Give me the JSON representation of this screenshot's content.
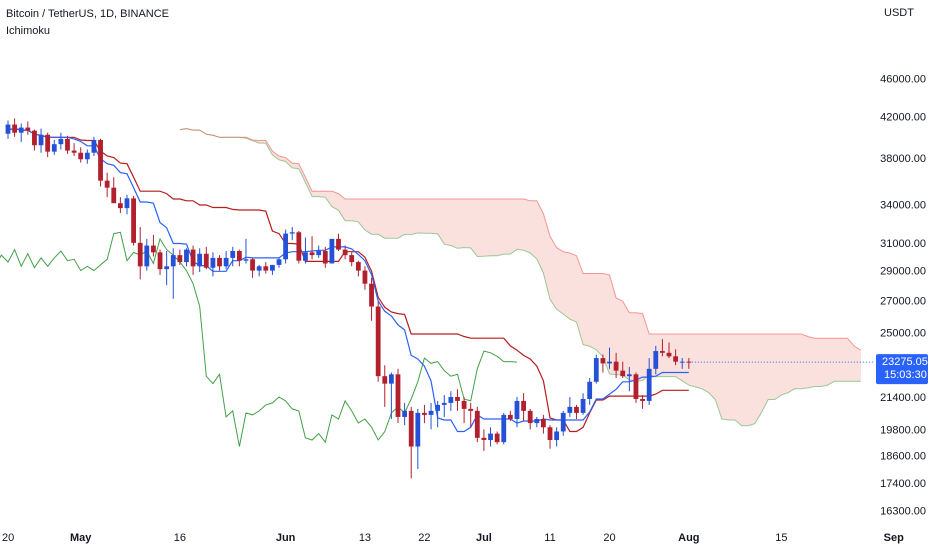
{
  "header": {
    "title": "Bitcoin / TetherUS, 1D, BINANCE",
    "indicator": "Ichimoku"
  },
  "currency": "USDT",
  "price_tag": {
    "price": "23275.05",
    "countdown": "15:03:30",
    "value": 23275.05
  },
  "colors": {
    "up": "#2451d6",
    "down": "#b21f2d",
    "base_line": "#b71c1c",
    "conversion_line": "#2962ff",
    "lagging_span": "#43a047",
    "cloud_bull": "#e7f3e8",
    "cloud_bear": "#fbe1de",
    "price_tag": "#2962ff"
  },
  "chart_data": {
    "type": "candlestick",
    "title": "Bitcoin / TetherUS, 1D, BINANCE",
    "indicator": "Ichimoku",
    "y_scale": "log",
    "ylim": [
      16000,
      50000
    ],
    "y_ticks": [
      {
        "v": 46000,
        "label": "46000.00"
      },
      {
        "v": 42000,
        "label": "42000.00"
      },
      {
        "v": 38000,
        "label": "38000.00"
      },
      {
        "v": 34000,
        "label": "34000.00"
      },
      {
        "v": 31000,
        "label": "31000.00"
      },
      {
        "v": 29000,
        "label": "29000.00"
      },
      {
        "v": 27000,
        "label": "27000.00"
      },
      {
        "v": 25000,
        "label": "25000.00"
      },
      {
        "v": 21400,
        "label": "21400.00"
      },
      {
        "v": 19800,
        "label": "19800.00"
      },
      {
        "v": 18600,
        "label": "18600.00"
      },
      {
        "v": 17400,
        "label": "17400.00"
      },
      {
        "v": 16300,
        "label": "16300.00"
      }
    ],
    "x_ticks": [
      {
        "d": 0,
        "label": "20",
        "bold": false
      },
      {
        "d": 11,
        "label": "May",
        "bold": true
      },
      {
        "d": 26,
        "label": "16",
        "bold": false
      },
      {
        "d": 42,
        "label": "Jun",
        "bold": true
      },
      {
        "d": 54,
        "label": "13",
        "bold": false
      },
      {
        "d": 63,
        "label": "22",
        "bold": false
      },
      {
        "d": 72,
        "label": "Jul",
        "bold": true
      },
      {
        "d": 82,
        "label": "11",
        "bold": false
      },
      {
        "d": 91,
        "label": "20",
        "bold": false
      },
      {
        "d": 103,
        "label": "Aug",
        "bold": true
      },
      {
        "d": 117,
        "label": "15",
        "bold": false
      },
      {
        "d": 134,
        "label": "Sep",
        "bold": true
      }
    ],
    "candles": [
      [
        40300,
        41600,
        39800,
        41200
      ],
      [
        41200,
        41800,
        40000,
        40400
      ],
      [
        40400,
        41300,
        39500,
        40900
      ],
      [
        40900,
        41500,
        40200,
        40600
      ],
      [
        40600,
        40700,
        38700,
        39200
      ],
      [
        39200,
        40800,
        38500,
        40200
      ],
      [
        40200,
        40400,
        38100,
        38600
      ],
      [
        38600,
        39700,
        38300,
        39300
      ],
      [
        39300,
        40400,
        38800,
        39800
      ],
      [
        39800,
        40100,
        38400,
        38700
      ],
      [
        38700,
        39400,
        38200,
        38500
      ],
      [
        38500,
        39000,
        37600,
        37900
      ],
      [
        37900,
        38800,
        37500,
        38500
      ],
      [
        38500,
        40000,
        38200,
        39700
      ],
      [
        39700,
        39800,
        35500,
        36000
      ],
      [
        36000,
        36700,
        34600,
        35400
      ],
      [
        35400,
        36300,
        34300,
        34100
      ],
      [
        34100,
        34600,
        33300,
        33700
      ],
      [
        33700,
        34800,
        33200,
        34500
      ],
      [
        34500,
        34700,
        30800,
        31000
      ],
      [
        31000,
        32200,
        28400,
        29300
      ],
      [
        29300,
        31300,
        29000,
        30800
      ],
      [
        30800,
        31600,
        30000,
        30300
      ],
      [
        30300,
        30500,
        28700,
        29100
      ],
      [
        29100,
        30400,
        28000,
        29300
      ],
      [
        29300,
        30600,
        27100,
        30100
      ],
      [
        30100,
        30500,
        29400,
        29600
      ],
      [
        29600,
        30600,
        29300,
        30500
      ],
      [
        30500,
        30800,
        28700,
        29300
      ],
      [
        29300,
        30600,
        28900,
        30200
      ],
      [
        30200,
        30700,
        29100,
        29200
      ],
      [
        29200,
        30300,
        28600,
        29900
      ],
      [
        29900,
        30100,
        29000,
        29300
      ],
      [
        29300,
        30400,
        29100,
        29900
      ],
      [
        29900,
        30700,
        29300,
        30400
      ],
      [
        30400,
        30500,
        29300,
        29700
      ],
      [
        29700,
        31300,
        29500,
        29800
      ],
      [
        29800,
        29900,
        28500,
        29000
      ],
      [
        29000,
        29400,
        28600,
        29300
      ],
      [
        29300,
        29600,
        28800,
        29000
      ],
      [
        29000,
        29400,
        28700,
        29400
      ],
      [
        29400,
        29900,
        29200,
        29800
      ],
      [
        29800,
        32000,
        29500,
        31700
      ],
      [
        31700,
        32200,
        31200,
        31800
      ],
      [
        31800,
        31900,
        29500,
        29700
      ],
      [
        29700,
        31400,
        29500,
        30300
      ],
      [
        30300,
        31500,
        29800,
        30100
      ],
      [
        30100,
        30800,
        29900,
        30400
      ],
      [
        30400,
        30700,
        29200,
        29500
      ],
      [
        29500,
        31300,
        29500,
        31300
      ],
      [
        31300,
        31700,
        30400,
        30500
      ],
      [
        30500,
        30800,
        29800,
        30100
      ],
      [
        30100,
        30300,
        29300,
        29600
      ],
      [
        29600,
        29700,
        28600,
        29000
      ],
      [
        29000,
        29300,
        27700,
        28100
      ],
      [
        28100,
        28500,
        25700,
        26600
      ],
      [
        26600,
        26900,
        22200,
        22500
      ],
      [
        22500,
        23100,
        20900,
        22100
      ],
      [
        22100,
        22700,
        20300,
        22600
      ],
      [
        22600,
        22900,
        20100,
        20400
      ],
      [
        20400,
        21100,
        20000,
        20700
      ],
      [
        20700,
        20900,
        17600,
        19000
      ],
      [
        19000,
        20800,
        18000,
        20600
      ],
      [
        20600,
        21000,
        20100,
        20500
      ],
      [
        20500,
        21100,
        19800,
        20700
      ],
      [
        20700,
        21200,
        19900,
        21000
      ],
      [
        21000,
        21500,
        20400,
        21100
      ],
      [
        21100,
        21700,
        20700,
        21400
      ],
      [
        21400,
        21800,
        20700,
        21200
      ],
      [
        21200,
        21400,
        20100,
        20800
      ],
      [
        20800,
        21100,
        19900,
        20700
      ],
      [
        20700,
        20900,
        19200,
        19400
      ],
      [
        19400,
        19800,
        18800,
        19300
      ],
      [
        19300,
        19900,
        19000,
        19600
      ],
      [
        19600,
        19700,
        19100,
        19200
      ],
      [
        19200,
        20600,
        19100,
        20500
      ],
      [
        20500,
        20700,
        20200,
        20300
      ],
      [
        20300,
        21400,
        19900,
        21200
      ],
      [
        21200,
        21600,
        20200,
        20700
      ],
      [
        20700,
        20800,
        19800,
        20100
      ],
      [
        20100,
        20400,
        19900,
        20300
      ],
      [
        20300,
        20500,
        19600,
        19900
      ],
      [
        19900,
        20000,
        18900,
        19300
      ],
      [
        19300,
        19900,
        19000,
        19700
      ],
      [
        19700,
        20700,
        19500,
        20600
      ],
      [
        20600,
        21400,
        20400,
        20900
      ],
      [
        20900,
        21000,
        20300,
        20600
      ],
      [
        20600,
        21600,
        20500,
        21300
      ],
      [
        21300,
        22400,
        21000,
        22200
      ],
      [
        22200,
        23700,
        22100,
        23500
      ],
      [
        23500,
        23700,
        22700,
        23200
      ],
      [
        23200,
        24100,
        22900,
        23300
      ],
      [
        23300,
        23800,
        22400,
        22800
      ],
      [
        22800,
        23300,
        22400,
        22500
      ],
      [
        22500,
        23000,
        21700,
        22600
      ],
      [
        22600,
        22700,
        21100,
        21300
      ],
      [
        21300,
        21500,
        20800,
        21200
      ],
      [
        21200,
        23500,
        21000,
        22900
      ],
      [
        22900,
        24200,
        22600,
        23900
      ],
      [
        23900,
        24600,
        23600,
        23800
      ],
      [
        23800,
        24400,
        23500,
        23600
      ],
      [
        23600,
        24000,
        23100,
        23300
      ],
      [
        23300,
        23500,
        22900,
        23300
      ],
      [
        23300,
        23500,
        22900,
        23275
      ]
    ]
  }
}
